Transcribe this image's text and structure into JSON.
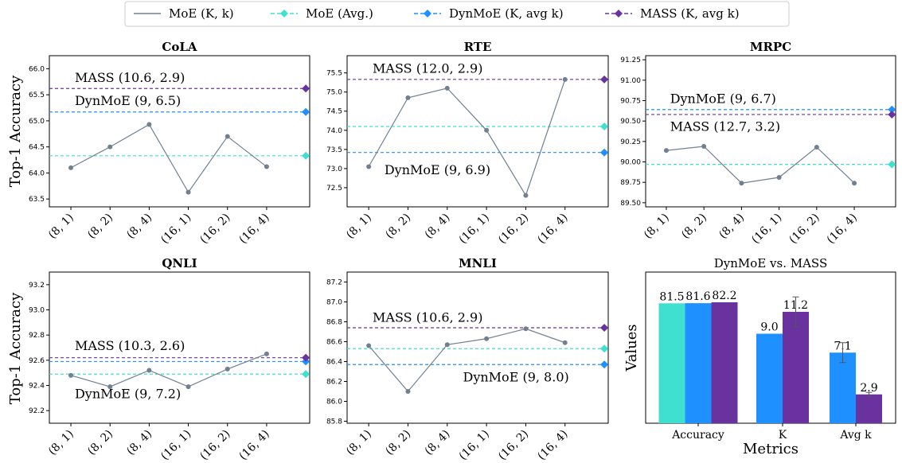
{
  "legend": {
    "items": [
      {
        "label": "MoE (K, k)",
        "color": "#708090",
        "style": "line"
      },
      {
        "label": "MoE (Avg.)",
        "color": "#40e0d0",
        "style": "dashed"
      },
      {
        "label": "DynMoE (K, avg k)",
        "color": "#1e90ff",
        "style": "dashed"
      },
      {
        "label": "MASS (K, avg k)",
        "color": "#6a329f",
        "style": "dashed"
      }
    ]
  },
  "ylabel_top": "Top-1 Accuracy",
  "ylabel_bottom": "Top-1 Accuracy",
  "chart_data": [
    {
      "type": "line",
      "title": "CoLA",
      "categories": [
        "(8, 1)",
        "(8, 2)",
        "(8, 4)",
        "(16, 1)",
        "(16, 2)",
        "(16, 4)"
      ],
      "series": [
        {
          "name": "MoE (K, k)",
          "values": [
            64.1,
            64.5,
            64.93,
            63.63,
            64.7,
            64.12
          ]
        }
      ],
      "moe_avg": 64.33,
      "dynmoe": 65.17,
      "mass": 65.62,
      "ylim": [
        63.35,
        66.25
      ],
      "yticks": [
        63.5,
        64.0,
        64.5,
        65.0,
        65.5,
        66.0
      ],
      "annotations": [
        {
          "text": "MASS (10.6, 2.9)",
          "x": 0.1,
          "y": 65.75
        },
        {
          "text": "DynMoE (9, 6.5)",
          "x": 0.1,
          "y": 65.3
        }
      ]
    },
    {
      "type": "line",
      "title": "RTE",
      "categories": [
        "(8, 1)",
        "(8, 2)",
        "(8, 4)",
        "(16, 1)",
        "(16, 2)",
        "(16, 4)"
      ],
      "series": [
        {
          "name": "MoE (K, k)",
          "values": [
            73.05,
            74.85,
            75.1,
            74.0,
            72.3,
            75.33
          ]
        }
      ],
      "moe_avg": 74.1,
      "dynmoe": 73.42,
      "mass": 75.33,
      "ylim": [
        72.0,
        75.95
      ],
      "yticks": [
        72.5,
        73.0,
        73.5,
        74.0,
        74.5,
        75.0,
        75.5
      ],
      "annotations": [
        {
          "text": "MASS (12.0, 2.9)",
          "x": 0.1,
          "y": 75.5
        },
        {
          "text": "DynMoE (9, 6.9)",
          "x": 0.4,
          "y": 72.85
        }
      ]
    },
    {
      "type": "line",
      "title": "MRPC",
      "categories": [
        "(8, 1)",
        "(8, 2)",
        "(8, 4)",
        "(16, 1)",
        "(16, 2)",
        "(16, 4)"
      ],
      "series": [
        {
          "name": "MoE (K, k)",
          "values": [
            90.14,
            90.19,
            89.74,
            89.81,
            90.18,
            89.74
          ]
        }
      ],
      "moe_avg": 89.97,
      "dynmoe": 90.64,
      "mass": 90.58,
      "ylim": [
        89.45,
        91.3
      ],
      "yticks": [
        89.5,
        89.75,
        90.0,
        90.25,
        90.5,
        90.75,
        91.0,
        91.25
      ],
      "annotations": [
        {
          "text": "DynMoE (9, 6.7)",
          "x": 0.1,
          "y": 90.72
        },
        {
          "text": "MASS (12.7, 3.2)",
          "x": 0.1,
          "y": 90.38
        }
      ]
    },
    {
      "type": "line",
      "title": "QNLI",
      "categories": [
        "(8, 1)",
        "(8, 2)",
        "(8, 4)",
        "(16, 1)",
        "(16, 2)",
        "(16, 4)"
      ],
      "series": [
        {
          "name": "MoE (K, k)",
          "values": [
            92.48,
            92.39,
            92.52,
            92.39,
            92.53,
            92.65
          ]
        }
      ],
      "moe_avg": 92.49,
      "dynmoe": 92.59,
      "mass": 92.62,
      "ylim": [
        92.1,
        93.3
      ],
      "yticks": [
        92.2,
        92.4,
        92.6,
        92.8,
        93.0,
        93.2
      ],
      "annotations": [
        {
          "text": "MASS (10.3, 2.6)",
          "x": 0.1,
          "y": 92.68
        },
        {
          "text": "DynMoE (9, 7.2)",
          "x": 0.1,
          "y": 92.3
        }
      ]
    },
    {
      "type": "line",
      "title": "MNLI",
      "categories": [
        "(8, 1)",
        "(8, 2)",
        "(8, 4)",
        "(16, 1)",
        "(16, 2)",
        "(16, 4)"
      ],
      "series": [
        {
          "name": "MoE (K, k)",
          "values": [
            86.56,
            86.1,
            86.57,
            86.63,
            86.73,
            86.59
          ]
        }
      ],
      "moe_avg": 86.53,
      "dynmoe": 86.37,
      "mass": 86.74,
      "ylim": [
        85.78,
        87.3
      ],
      "yticks": [
        85.8,
        86.0,
        86.2,
        86.4,
        86.6,
        86.8,
        87.0,
        87.2
      ],
      "annotations": [
        {
          "text": "MASS (10.6, 2.9)",
          "x": 0.1,
          "y": 86.8
        },
        {
          "text": "DynMoE (9, 8.0)",
          "x": 2.4,
          "y": 86.2
        }
      ]
    },
    {
      "type": "bar",
      "title": "DynMoE vs. MASS",
      "xlabel": "Metrics",
      "ylabel": "Values",
      "categories": [
        "Accuracy",
        "K",
        "Avg k"
      ],
      "series": [
        {
          "values": [
            81.5,
            null,
            null
          ],
          "color": "#40e0d0",
          "labels": [
            "81.5",
            "",
            ""
          ]
        },
        {
          "values": [
            81.6,
            9.0,
            7.1
          ],
          "color": "#1e90ff",
          "labels": [
            "81.6",
            "9.0",
            "7.1"
          ]
        },
        {
          "values": [
            82.2,
            11.2,
            2.9
          ],
          "color": "#6a329f",
          "labels": [
            "82.2",
            "11.2",
            "2.9"
          ]
        }
      ],
      "errors": {
        "K": 1.5,
        "Avg k": 1.0,
        "Avg k_mass": 0.2
      }
    }
  ]
}
